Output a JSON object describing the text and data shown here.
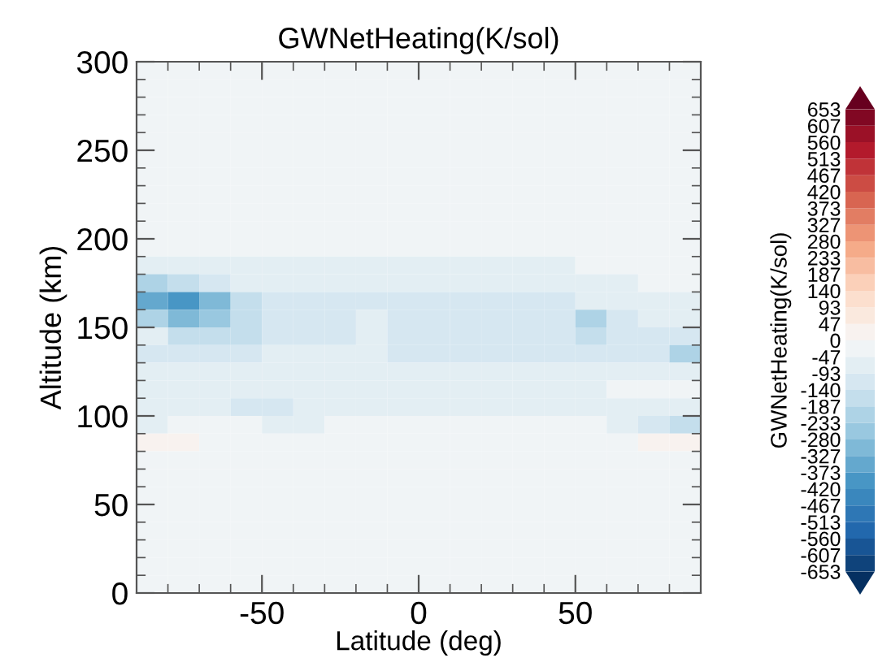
{
  "chart_data": {
    "type": "heatmap",
    "title": "GWNetHeating(K/sol)",
    "xlabel": "Latitude (deg)",
    "ylabel": "Altitude (km)",
    "clabel": "GWNetHeating(K/sol)",
    "x": [
      -85,
      -75,
      -65,
      -55,
      -45,
      -35,
      -25,
      -15,
      -5,
      5,
      15,
      25,
      35,
      45,
      55,
      65,
      75,
      85
    ],
    "y": [
      295,
      285,
      275,
      265,
      255,
      245,
      235,
      225,
      215,
      205,
      195,
      185,
      175,
      165,
      155,
      145,
      135,
      125,
      115,
      105,
      95,
      85,
      75,
      65,
      55,
      45,
      35,
      25,
      15,
      5
    ],
    "xlim": [
      -90,
      90
    ],
    "ylim": [
      0,
      300
    ],
    "xticks": [
      -50,
      0,
      50
    ],
    "yticks": [
      0,
      50,
      100,
      150,
      200,
      250,
      300
    ],
    "clim": [
      -653,
      653
    ],
    "cticks": [
      -653,
      -607,
      -560,
      -513,
      -467,
      -420,
      -373,
      -327,
      -280,
      -233,
      -187,
      -140,
      -93,
      -47,
      0,
      47,
      93,
      140,
      187,
      233,
      280,
      327,
      373,
      420,
      467,
      513,
      560,
      607,
      653
    ],
    "cells": [
      [
        -5,
        -5,
        -5,
        -5,
        -5,
        -5,
        -5,
        -5,
        -5,
        -5,
        -5,
        -5,
        -5,
        -5,
        -5,
        -5,
        -5,
        -5
      ],
      [
        -5,
        -5,
        -5,
        -5,
        -5,
        -5,
        -5,
        -5,
        -5,
        -5,
        -5,
        -5,
        -5,
        -5,
        -5,
        -5,
        -5,
        -5
      ],
      [
        -5,
        -5,
        -5,
        -5,
        -5,
        -5,
        -5,
        -5,
        -5,
        -5,
        -5,
        -5,
        -5,
        -5,
        -5,
        -5,
        -5,
        -5
      ],
      [
        -5,
        -5,
        -5,
        -5,
        -5,
        -5,
        -5,
        -5,
        -5,
        -5,
        -5,
        -5,
        -5,
        -5,
        -5,
        -5,
        -5,
        -5
      ],
      [
        -5,
        -5,
        -5,
        -5,
        -5,
        -5,
        -5,
        -5,
        -5,
        -5,
        -5,
        -5,
        -5,
        -5,
        -5,
        -5,
        -5,
        -5
      ],
      [
        -5,
        -5,
        -5,
        -5,
        -5,
        -5,
        -5,
        -5,
        -5,
        -5,
        -5,
        -5,
        -5,
        -5,
        -5,
        -5,
        -5,
        -5
      ],
      [
        -5,
        -5,
        -5,
        -5,
        -5,
        -5,
        -5,
        -5,
        -5,
        -5,
        -5,
        -5,
        -5,
        -5,
        -5,
        -5,
        -5,
        -5
      ],
      [
        -5,
        -5,
        -5,
        -5,
        -5,
        -5,
        -5,
        -5,
        -5,
        -5,
        -5,
        -5,
        -5,
        -5,
        -5,
        -5,
        -5,
        -5
      ],
      [
        -5,
        -5,
        -5,
        -5,
        -5,
        -5,
        -5,
        -5,
        -5,
        -5,
        -5,
        -5,
        -5,
        -5,
        -5,
        -5,
        -5,
        -5
      ],
      [
        -5,
        -5,
        -5,
        -5,
        -5,
        -5,
        -5,
        -5,
        -5,
        -5,
        -5,
        -5,
        -5,
        -5,
        -5,
        -5,
        -5,
        -5
      ],
      [
        -40,
        -40,
        -40,
        -40,
        -40,
        -40,
        -45,
        -45,
        -45,
        -45,
        -45,
        -40,
        -40,
        -30,
        -20,
        -15,
        -10,
        -10
      ],
      [
        -60,
        -55,
        -50,
        -50,
        -50,
        -50,
        -55,
        -55,
        -55,
        -55,
        -55,
        -55,
        -50,
        -50,
        -45,
        -40,
        -30,
        -20
      ],
      [
        -200,
        -150,
        -100,
        -70,
        -70,
        -70,
        -70,
        -70,
        -70,
        -70,
        -70,
        -70,
        -70,
        -70,
        -60,
        -50,
        -40,
        -35
      ],
      [
        -330,
        -380,
        -300,
        -150,
        -100,
        -100,
        -100,
        -100,
        -110,
        -110,
        -110,
        -100,
        -100,
        -110,
        -60,
        -60,
        -50,
        -50
      ],
      [
        -230,
        -320,
        -260,
        -180,
        -110,
        -100,
        -100,
        -90,
        -110,
        -120,
        -120,
        -110,
        -100,
        -140,
        -200,
        -120,
        -80,
        -70
      ],
      [
        -90,
        -150,
        -180,
        -160,
        -110,
        -100,
        -100,
        -90,
        -110,
        -120,
        -120,
        -110,
        -100,
        -120,
        -170,
        -130,
        -100,
        -110
      ],
      [
        -100,
        -120,
        -140,
        -110,
        -90,
        -90,
        -90,
        -90,
        -100,
        -110,
        -110,
        -100,
        -100,
        -100,
        -130,
        -120,
        -110,
        -230
      ],
      [
        -80,
        -80,
        -80,
        -70,
        -70,
        -70,
        -70,
        -70,
        -70,
        -70,
        -70,
        -70,
        -70,
        -70,
        -70,
        -80,
        -70,
        -90
      ],
      [
        -50,
        -50,
        -50,
        -50,
        -50,
        -50,
        -50,
        -50,
        -50,
        -50,
        -50,
        -50,
        -50,
        -50,
        -50,
        -40,
        -30,
        -30
      ],
      [
        -90,
        -60,
        -70,
        -110,
        -100,
        -80,
        -70,
        -50,
        -50,
        -50,
        -50,
        -50,
        -50,
        -50,
        -60,
        -80,
        -90,
        -90
      ],
      [
        -60,
        -40,
        -40,
        -40,
        -50,
        -50,
        -45,
        -45,
        -45,
        -45,
        -45,
        -45,
        -45,
        -45,
        -45,
        -60,
        -100,
        -170
      ],
      [
        20,
        15,
        -5,
        -5,
        -5,
        -5,
        -5,
        -5,
        -5,
        -5,
        -5,
        -5,
        -5,
        -5,
        -5,
        -5,
        20,
        20
      ],
      [
        -5,
        -5,
        -5,
        -5,
        -5,
        -5,
        -5,
        -5,
        -5,
        -5,
        -5,
        -5,
        -5,
        -5,
        -5,
        -5,
        -5,
        -5
      ],
      [
        -5,
        -5,
        -5,
        -5,
        -5,
        -5,
        -5,
        -5,
        -5,
        -5,
        -5,
        -5,
        -5,
        -5,
        -5,
        -5,
        -5,
        -5
      ],
      [
        -5,
        -5,
        -5,
        -5,
        -5,
        -5,
        -5,
        -5,
        -5,
        -5,
        -5,
        -5,
        -5,
        -5,
        -5,
        -5,
        -5,
        -5
      ],
      [
        -5,
        -5,
        -5,
        -5,
        -5,
        -5,
        -5,
        -5,
        -5,
        -5,
        -5,
        -5,
        -5,
        -5,
        -5,
        -5,
        -5,
        -5
      ],
      [
        -10,
        -15,
        -15,
        -15,
        -15,
        -15,
        -10,
        -10,
        -10,
        -10,
        -15,
        -15,
        -15,
        -10,
        -15,
        -15,
        -15,
        -10
      ],
      [
        -15,
        -20,
        -20,
        -20,
        -20,
        -20,
        -20,
        -15,
        -15,
        -15,
        -15,
        -20,
        -20,
        -20,
        -20,
        -20,
        -20,
        -15
      ],
      [
        -15,
        -20,
        -20,
        -20,
        -20,
        -20,
        -20,
        -20,
        -20,
        -20,
        -20,
        -20,
        -20,
        -20,
        -20,
        -20,
        -20,
        -15
      ],
      [
        -15,
        -15,
        -15,
        -15,
        -15,
        -15,
        -15,
        -15,
        -15,
        -15,
        -20,
        -20,
        -20,
        -20,
        -20,
        -15,
        -15,
        -15
      ]
    ]
  }
}
